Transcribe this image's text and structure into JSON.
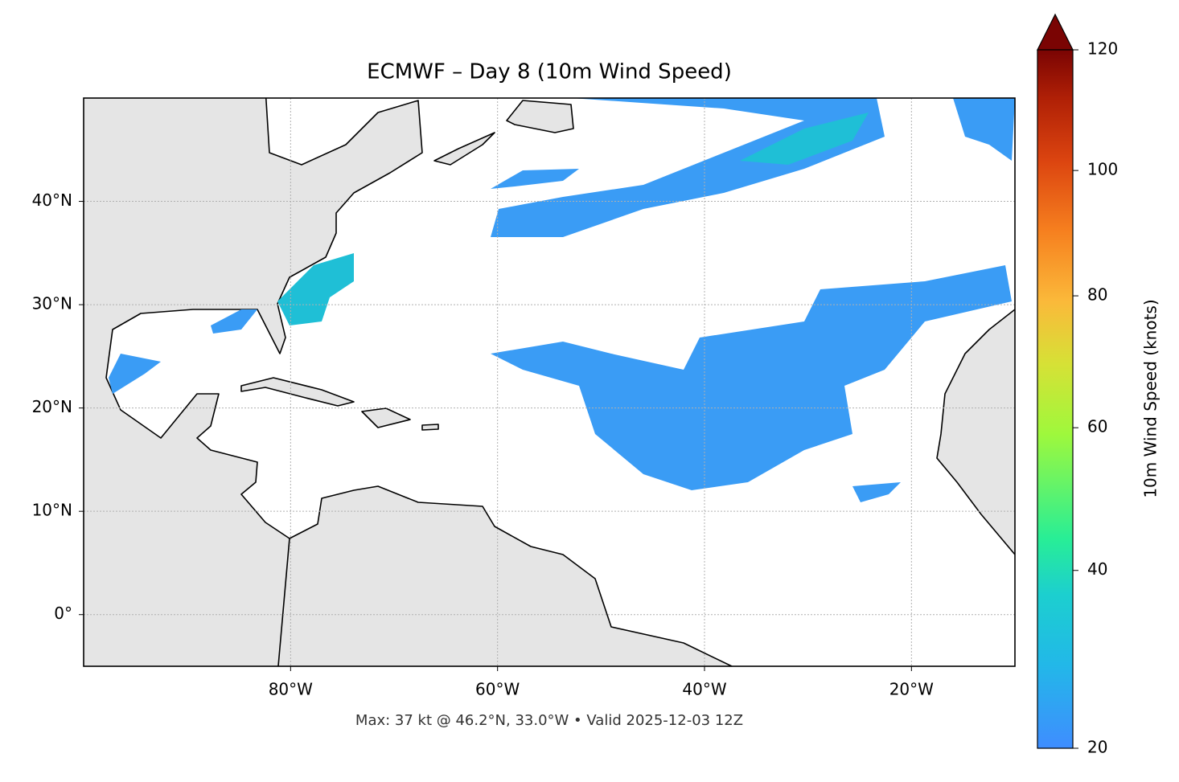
{
  "title": "ECMWF – Day 8 (10m Wind Speed)",
  "map": {
    "xlim": [
      -100,
      -10
    ],
    "ylim": [
      -5,
      50
    ],
    "xticks": [
      {
        "value": -80,
        "label": "80°W"
      },
      {
        "value": -60,
        "label": "60°W"
      },
      {
        "value": -40,
        "label": "40°W"
      },
      {
        "value": -20,
        "label": "20°W"
      }
    ],
    "yticks": [
      {
        "value": 0,
        "label": "0°"
      },
      {
        "value": 10,
        "label": "10°N"
      },
      {
        "value": 20,
        "label": "20°N"
      },
      {
        "value": 30,
        "label": "30°N"
      },
      {
        "value": 40,
        "label": "40°N"
      }
    ],
    "grid": true
  },
  "colorbar": {
    "label": "10m Wind Speed (knots)",
    "lim": [
      20,
      120
    ],
    "gamma": 0.85,
    "ticks": [
      20,
      40,
      60,
      80,
      100,
      120
    ]
  },
  "caption": "Max: 37 kt @ 46.2°N, 33.0°W • Valid 2025-12-03 12Z"
}
